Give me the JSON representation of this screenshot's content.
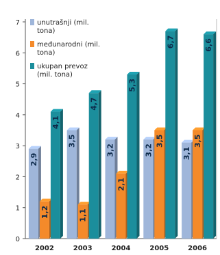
{
  "chart_data": {
    "type": "bar",
    "categories": [
      "2002",
      "2003",
      "2004",
      "2005",
      "2006"
    ],
    "series": [
      {
        "name": "unutrašnji (mil. tona)",
        "values": [
          2.9,
          3.5,
          3.2,
          3.2,
          3.1
        ],
        "labels": [
          "2,9",
          "3,5",
          "3,2",
          "3,2",
          "3,1"
        ],
        "color": "#9fb6da"
      },
      {
        "name": "međunarodni (mil. tona)",
        "values": [
          1.2,
          1.1,
          2.1,
          3.5,
          3.5
        ],
        "labels": [
          "1,2",
          "1,1",
          "2,1",
          "3,5",
          "3,5"
        ],
        "color": "#f48a2a"
      },
      {
        "name": "ukupan prevoz (mil. tona)",
        "values": [
          4.1,
          4.7,
          5.3,
          6.7,
          6.6
        ],
        "labels": [
          "4,1",
          "4,7",
          "5,3",
          "6,7",
          "6,6"
        ],
        "color": "#1b8e9c"
      }
    ],
    "legend_lines": [
      [
        "unutrašnji (mil.",
        "tona)"
      ],
      [
        "međunarodni (mil.",
        "tona)"
      ],
      [
        "ukupan prevoz",
        "(mil. tona)"
      ]
    ],
    "yticks": [
      "0",
      "1",
      "2",
      "3",
      "4",
      "5",
      "6",
      "7"
    ],
    "ylim": [
      0,
      7
    ],
    "grid": false,
    "legend_position": "top-left",
    "title": "",
    "xlabel": "",
    "ylabel": ""
  }
}
